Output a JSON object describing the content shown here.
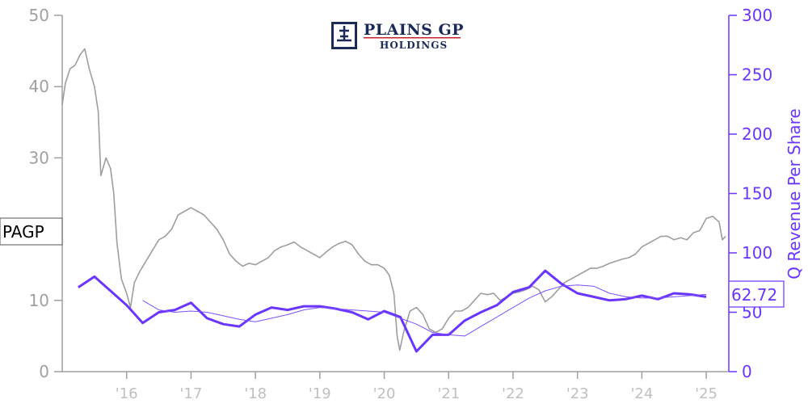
{
  "logo": {
    "line1": "PLAINS GP",
    "line2": "HOLDINGS"
  },
  "ticker": "PAGP",
  "last_value_label": "62.72",
  "colors": {
    "price": "#999999",
    "revenue": "#6a35ff",
    "revenue_avg": "#7b52ff",
    "logo_navy": "#1b2a57",
    "logo_red": "#c8202f"
  },
  "chart_data": {
    "type": "line",
    "title": "",
    "xlabel": "",
    "ylabel_left": "",
    "ylabel_right": "Q Revenue Per Share",
    "xlim": [
      2015.0,
      2025.35
    ],
    "ylim_left": [
      0,
      50
    ],
    "ylim_right": [
      0,
      300
    ],
    "left_ticks": [
      0,
      10,
      20,
      30,
      40,
      50
    ],
    "right_ticks": [
      0,
      50,
      100,
      150,
      200,
      250,
      300
    ],
    "x_ticks": [
      {
        "label": "'16",
        "x": 2016.0
      },
      {
        "label": "'17",
        "x": 2017.0
      },
      {
        "label": "'18",
        "x": 2018.0
      },
      {
        "label": "'19",
        "x": 2019.0
      },
      {
        "label": "'20",
        "x": 2020.0
      },
      {
        "label": "'21",
        "x": 2021.0
      },
      {
        "label": "'22",
        "x": 2022.0
      },
      {
        "label": "'23",
        "x": 2023.0
      },
      {
        "label": "'24",
        "x": 2024.0
      },
      {
        "label": "'25",
        "x": 2025.0
      }
    ],
    "grid": false,
    "legend": "none",
    "series": [
      {
        "name": "PAGP",
        "axis": "left",
        "points": [
          [
            2015.0,
            37.5
          ],
          [
            2015.05,
            40.5
          ],
          [
            2015.12,
            42.5
          ],
          [
            2015.2,
            43.0
          ],
          [
            2015.28,
            44.5
          ],
          [
            2015.35,
            45.3
          ],
          [
            2015.42,
            42.5
          ],
          [
            2015.5,
            40.0
          ],
          [
            2015.56,
            36.5
          ],
          [
            2015.6,
            27.5
          ],
          [
            2015.68,
            30.0
          ],
          [
            2015.75,
            28.5
          ],
          [
            2015.8,
            25.0
          ],
          [
            2015.85,
            18.0
          ],
          [
            2015.92,
            13.0
          ],
          [
            2016.0,
            11.0
          ],
          [
            2016.06,
            9.0
          ],
          [
            2016.12,
            12.5
          ],
          [
            2016.2,
            14.0
          ],
          [
            2016.3,
            15.5
          ],
          [
            2016.4,
            17.0
          ],
          [
            2016.5,
            18.5
          ],
          [
            2016.6,
            19.0
          ],
          [
            2016.7,
            20.0
          ],
          [
            2016.8,
            22.0
          ],
          [
            2016.9,
            22.5
          ],
          [
            2017.0,
            23.0
          ],
          [
            2017.1,
            22.5
          ],
          [
            2017.2,
            22.0
          ],
          [
            2017.3,
            21.0
          ],
          [
            2017.4,
            20.0
          ],
          [
            2017.5,
            18.5
          ],
          [
            2017.6,
            16.5
          ],
          [
            2017.7,
            15.5
          ],
          [
            2017.8,
            14.8
          ],
          [
            2017.9,
            15.2
          ],
          [
            2018.0,
            15.0
          ],
          [
            2018.1,
            15.5
          ],
          [
            2018.2,
            16.0
          ],
          [
            2018.3,
            17.0
          ],
          [
            2018.4,
            17.5
          ],
          [
            2018.5,
            17.8
          ],
          [
            2018.6,
            18.2
          ],
          [
            2018.7,
            17.5
          ],
          [
            2018.8,
            17.0
          ],
          [
            2018.9,
            16.5
          ],
          [
            2019.0,
            16.0
          ],
          [
            2019.1,
            16.8
          ],
          [
            2019.2,
            17.5
          ],
          [
            2019.3,
            18.0
          ],
          [
            2019.4,
            18.3
          ],
          [
            2019.5,
            17.8
          ],
          [
            2019.6,
            16.5
          ],
          [
            2019.7,
            15.5
          ],
          [
            2019.8,
            15.0
          ],
          [
            2019.9,
            15.0
          ],
          [
            2020.0,
            14.5
          ],
          [
            2020.08,
            13.5
          ],
          [
            2020.15,
            11.0
          ],
          [
            2020.2,
            5.0
          ],
          [
            2020.24,
            3.0
          ],
          [
            2020.3,
            5.5
          ],
          [
            2020.4,
            8.5
          ],
          [
            2020.5,
            9.0
          ],
          [
            2020.6,
            8.0
          ],
          [
            2020.7,
            6.0
          ],
          [
            2020.8,
            5.5
          ],
          [
            2020.9,
            6.0
          ],
          [
            2021.0,
            7.5
          ],
          [
            2021.1,
            8.5
          ],
          [
            2021.2,
            8.5
          ],
          [
            2021.3,
            9.0
          ],
          [
            2021.4,
            10.0
          ],
          [
            2021.5,
            11.0
          ],
          [
            2021.6,
            10.8
          ],
          [
            2021.7,
            11.0
          ],
          [
            2021.8,
            10.0
          ],
          [
            2021.9,
            10.5
          ],
          [
            2022.0,
            11.0
          ],
          [
            2022.1,
            11.2
          ],
          [
            2022.2,
            11.5
          ],
          [
            2022.3,
            12.0
          ],
          [
            2022.4,
            11.5
          ],
          [
            2022.5,
            9.8
          ],
          [
            2022.6,
            10.5
          ],
          [
            2022.7,
            11.5
          ],
          [
            2022.8,
            12.5
          ],
          [
            2022.9,
            13.0
          ],
          [
            2023.0,
            13.5
          ],
          [
            2023.1,
            14.0
          ],
          [
            2023.2,
            14.5
          ],
          [
            2023.3,
            14.5
          ],
          [
            2023.4,
            14.8
          ],
          [
            2023.5,
            15.2
          ],
          [
            2023.6,
            15.5
          ],
          [
            2023.7,
            15.8
          ],
          [
            2023.8,
            16.0
          ],
          [
            2023.9,
            16.5
          ],
          [
            2024.0,
            17.5
          ],
          [
            2024.1,
            18.0
          ],
          [
            2024.2,
            18.5
          ],
          [
            2024.3,
            19.0
          ],
          [
            2024.4,
            19.0
          ],
          [
            2024.5,
            18.5
          ],
          [
            2024.6,
            18.8
          ],
          [
            2024.7,
            18.5
          ],
          [
            2024.8,
            19.5
          ],
          [
            2024.9,
            19.8
          ],
          [
            2025.0,
            21.5
          ],
          [
            2025.1,
            21.8
          ],
          [
            2025.2,
            21.0
          ],
          [
            2025.25,
            18.5
          ],
          [
            2025.3,
            19.0
          ]
        ]
      },
      {
        "name": "Q Revenue Per Share",
        "axis": "right",
        "points": [
          [
            2015.25,
            71
          ],
          [
            2015.5,
            80
          ],
          [
            2015.75,
            68
          ],
          [
            2016.0,
            56
          ],
          [
            2016.25,
            41
          ],
          [
            2016.5,
            50
          ],
          [
            2016.75,
            52
          ],
          [
            2017.0,
            58
          ],
          [
            2017.25,
            45
          ],
          [
            2017.5,
            40
          ],
          [
            2017.75,
            38
          ],
          [
            2018.0,
            48
          ],
          [
            2018.25,
            54
          ],
          [
            2018.5,
            52
          ],
          [
            2018.75,
            55
          ],
          [
            2019.0,
            55
          ],
          [
            2019.25,
            53
          ],
          [
            2019.5,
            50
          ],
          [
            2019.75,
            44
          ],
          [
            2020.0,
            51
          ],
          [
            2020.25,
            46
          ],
          [
            2020.5,
            17
          ],
          [
            2020.75,
            31
          ],
          [
            2021.0,
            31
          ],
          [
            2021.25,
            43
          ],
          [
            2021.5,
            50
          ],
          [
            2021.75,
            56
          ],
          [
            2022.0,
            67
          ],
          [
            2022.25,
            71
          ],
          [
            2022.5,
            85
          ],
          [
            2022.75,
            74
          ],
          [
            2023.0,
            66
          ],
          [
            2023.25,
            63
          ],
          [
            2023.5,
            60
          ],
          [
            2023.75,
            61
          ],
          [
            2024.0,
            64
          ],
          [
            2024.25,
            61
          ],
          [
            2024.5,
            66
          ],
          [
            2024.75,
            65
          ],
          [
            2025.0,
            63
          ]
        ]
      },
      {
        "name": "Q Revenue Per Share Avg",
        "axis": "right",
        "points": [
          [
            2016.25,
            60
          ],
          [
            2016.5,
            52
          ],
          [
            2016.75,
            50
          ],
          [
            2017.0,
            51
          ],
          [
            2017.25,
            50
          ],
          [
            2017.5,
            47
          ],
          [
            2017.75,
            44
          ],
          [
            2018.0,
            42
          ],
          [
            2018.25,
            45
          ],
          [
            2018.5,
            48
          ],
          [
            2018.75,
            52
          ],
          [
            2019.0,
            54
          ],
          [
            2019.25,
            53
          ],
          [
            2019.5,
            52
          ],
          [
            2019.75,
            51
          ],
          [
            2020.0,
            50
          ],
          [
            2020.25,
            45
          ],
          [
            2020.5,
            40
          ],
          [
            2020.75,
            33
          ],
          [
            2021.0,
            31
          ],
          [
            2021.25,
            30
          ],
          [
            2021.5,
            38
          ],
          [
            2021.75,
            46
          ],
          [
            2022.0,
            54
          ],
          [
            2022.25,
            62
          ],
          [
            2022.5,
            68
          ],
          [
            2022.75,
            72
          ],
          [
            2023.0,
            73
          ],
          [
            2023.25,
            72
          ],
          [
            2023.5,
            66
          ],
          [
            2023.75,
            63
          ],
          [
            2024.0,
            62
          ],
          [
            2024.25,
            62
          ],
          [
            2024.5,
            63
          ],
          [
            2024.75,
            64
          ],
          [
            2025.0,
            65
          ]
        ]
      }
    ]
  }
}
